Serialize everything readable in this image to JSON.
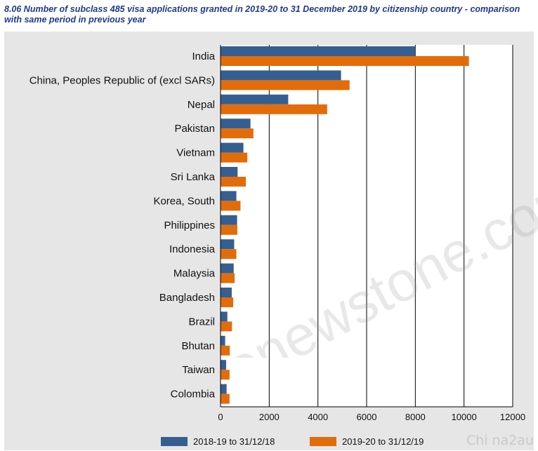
{
  "title": "8.06 Number of subclass 485 visa applications granted in 2019-20 to 31 December 2019 by citizenship country - comparison with same period in previous year",
  "watermark": {
    "site": "thenewstone.com",
    "corner": "Chi na2au"
  },
  "colors": {
    "series1": "#365f91",
    "series2": "#e36c0a",
    "panel": "#e6e6e6"
  },
  "chart_data": {
    "type": "bar",
    "orientation": "horizontal",
    "categories": [
      "India",
      "China, Peoples Republic of (excl SARs)",
      "Nepal",
      "Pakistan",
      "Vietnam",
      "Sri Lanka",
      "Korea, South",
      "Philippines",
      "Indonesia",
      "Malaysia",
      "Bangladesh",
      "Brazil",
      "Bhutan",
      "Taiwan",
      "Colombia"
    ],
    "series": [
      {
        "name": "2018-19 to 31/12/18",
        "values": [
          8000,
          4950,
          2780,
          1230,
          940,
          700,
          650,
          680,
          560,
          540,
          460,
          280,
          190,
          230,
          250
        ]
      },
      {
        "name": "2019-20 to 31/12/19",
        "values": [
          10200,
          5300,
          4380,
          1350,
          1100,
          1040,
          820,
          690,
          650,
          580,
          520,
          470,
          380,
          370,
          370
        ]
      }
    ],
    "xlim": [
      0,
      12000
    ],
    "xticks": [
      0,
      2000,
      4000,
      6000,
      8000,
      10000,
      12000
    ],
    "xtick_labels": [
      "0",
      "2000",
      "4000",
      "6000",
      "8000",
      "10000",
      "12000"
    ],
    "grid": true,
    "legend_position": "bottom"
  }
}
